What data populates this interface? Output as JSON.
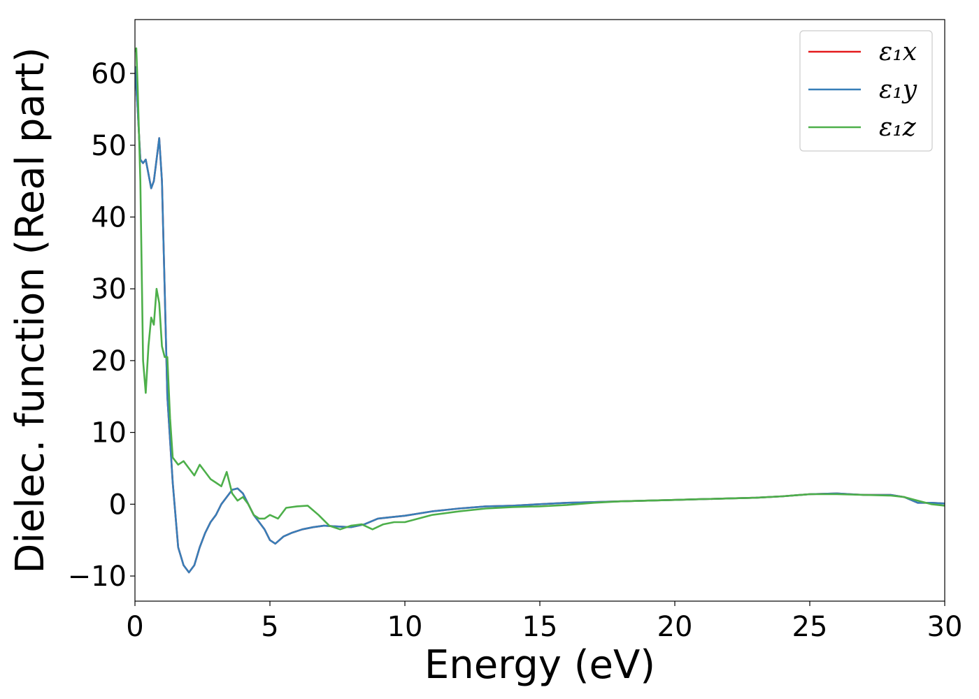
{
  "chart_data": {
    "type": "line",
    "title": "",
    "xlabel": "Energy (eV)",
    "ylabel": "Dielec. function (Real part)",
    "xlim": [
      0,
      30
    ],
    "ylim": [
      -13.5,
      67.5
    ],
    "xticks": [
      0,
      5,
      10,
      15,
      20,
      25,
      30
    ],
    "xtick_labels": [
      "0",
      "5",
      "10",
      "15",
      "20",
      "25",
      "30"
    ],
    "yticks": [
      -10,
      0,
      10,
      20,
      30,
      40,
      50,
      60
    ],
    "ytick_labels": [
      "−10",
      "0",
      "10",
      "20",
      "30",
      "40",
      "50",
      "60"
    ],
    "grid": false,
    "legend_position": "top-right",
    "series": [
      {
        "name": "ε₁x",
        "color": "#e41a1c",
        "x": [
          0,
          0.1,
          0.2,
          0.3,
          0.4,
          0.5,
          0.6,
          0.7,
          0.8,
          0.9,
          1.0,
          1.1,
          1.2,
          1.4,
          1.6,
          1.8,
          2.0,
          2.2,
          2.4,
          2.6,
          2.8,
          3.0,
          3.2,
          3.4,
          3.6,
          3.8,
          4.0,
          4.2,
          4.4,
          4.6,
          4.8,
          5.0,
          5.2,
          5.5,
          5.8,
          6.2,
          6.6,
          7.0,
          7.5,
          8.0,
          8.5,
          9.0,
          9.5,
          10,
          11,
          12,
          13,
          14,
          15,
          16,
          17,
          18,
          19,
          20,
          21,
          22,
          23,
          24,
          25,
          26,
          26.5,
          27,
          28,
          28.5,
          29,
          29.5,
          30
        ],
        "y": [
          61,
          55,
          48,
          47.5,
          48,
          46,
          44,
          45,
          48,
          51,
          45,
          30,
          15,
          3,
          -6,
          -8.5,
          -9.5,
          -8.5,
          -6,
          -4,
          -2.5,
          -1.5,
          0,
          1,
          2,
          2.2,
          1.5,
          0,
          -1.5,
          -2.5,
          -3.5,
          -5,
          -5.5,
          -4.5,
          -4,
          -3.5,
          -3.2,
          -3,
          -3.1,
          -3.2,
          -2.8,
          -2,
          -1.8,
          -1.6,
          -1,
          -0.6,
          -0.3,
          -0.2,
          0,
          0.2,
          0.3,
          0.4,
          0.5,
          0.6,
          0.7,
          0.8,
          0.9,
          1.1,
          1.4,
          1.5,
          1.4,
          1.3,
          1.3,
          1.0,
          0.2,
          0.2,
          0.1
        ]
      },
      {
        "name": "ε₁y",
        "color": "#377eb8",
        "x": [
          0,
          0.1,
          0.2,
          0.3,
          0.4,
          0.5,
          0.6,
          0.7,
          0.8,
          0.9,
          1.0,
          1.1,
          1.2,
          1.4,
          1.6,
          1.8,
          2.0,
          2.2,
          2.4,
          2.6,
          2.8,
          3.0,
          3.2,
          3.4,
          3.6,
          3.8,
          4.0,
          4.2,
          4.4,
          4.6,
          4.8,
          5.0,
          5.2,
          5.5,
          5.8,
          6.2,
          6.6,
          7.0,
          7.5,
          8.0,
          8.5,
          9.0,
          9.5,
          10,
          11,
          12,
          13,
          14,
          15,
          16,
          17,
          18,
          19,
          20,
          21,
          22,
          23,
          24,
          25,
          26,
          26.5,
          27,
          28,
          28.5,
          29,
          29.5,
          30
        ],
        "y": [
          61,
          55,
          48,
          47.5,
          48,
          46,
          44,
          45,
          48,
          51,
          45,
          30,
          15,
          3,
          -6,
          -8.5,
          -9.5,
          -8.5,
          -6,
          -4,
          -2.5,
          -1.5,
          0,
          1,
          2,
          2.2,
          1.5,
          0,
          -1.5,
          -2.5,
          -3.5,
          -5,
          -5.5,
          -4.5,
          -4,
          -3.5,
          -3.2,
          -3,
          -3.1,
          -3.2,
          -2.8,
          -2,
          -1.8,
          -1.6,
          -1,
          -0.6,
          -0.3,
          -0.2,
          0,
          0.2,
          0.3,
          0.4,
          0.5,
          0.6,
          0.7,
          0.8,
          0.9,
          1.1,
          1.4,
          1.5,
          1.4,
          1.3,
          1.3,
          1.0,
          0.2,
          0.2,
          0.1
        ]
      },
      {
        "name": "ε₁z",
        "color": "#4daf4a",
        "x": [
          0,
          0.05,
          0.1,
          0.2,
          0.3,
          0.4,
          0.5,
          0.6,
          0.7,
          0.8,
          0.9,
          1.0,
          1.1,
          1.2,
          1.3,
          1.4,
          1.6,
          1.8,
          2.0,
          2.2,
          2.4,
          2.6,
          2.8,
          3.0,
          3.2,
          3.4,
          3.6,
          3.8,
          4.0,
          4.2,
          4.4,
          4.6,
          4.8,
          5.0,
          5.3,
          5.6,
          6.0,
          6.4,
          6.8,
          7.2,
          7.6,
          8.0,
          8.4,
          8.8,
          9.2,
          9.6,
          10,
          11,
          12,
          13,
          14,
          15,
          16,
          17,
          18,
          19,
          20,
          21,
          22,
          23,
          24,
          25,
          26,
          27,
          28,
          28.5,
          29,
          29.5,
          30
        ],
        "y": [
          63,
          63.5,
          58,
          45,
          20,
          15.5,
          22,
          26,
          25,
          30,
          28,
          22,
          20.5,
          20.5,
          12,
          6.5,
          5.5,
          6,
          5,
          4,
          5.5,
          4.5,
          3.5,
          3,
          2.5,
          4.5,
          1.5,
          0.5,
          1,
          0,
          -1.5,
          -2,
          -2,
          -1.5,
          -2,
          -0.5,
          -0.3,
          -0.2,
          -1.5,
          -3,
          -3.5,
          -3,
          -2.8,
          -3.5,
          -2.8,
          -2.5,
          -2.5,
          -1.5,
          -1.0,
          -0.6,
          -0.4,
          -0.3,
          -0.1,
          0.2,
          0.4,
          0.5,
          0.6,
          0.7,
          0.8,
          0.9,
          1.1,
          1.4,
          1.4,
          1.3,
          1.2,
          1.0,
          0.5,
          0.0,
          -0.2
        ]
      }
    ]
  }
}
